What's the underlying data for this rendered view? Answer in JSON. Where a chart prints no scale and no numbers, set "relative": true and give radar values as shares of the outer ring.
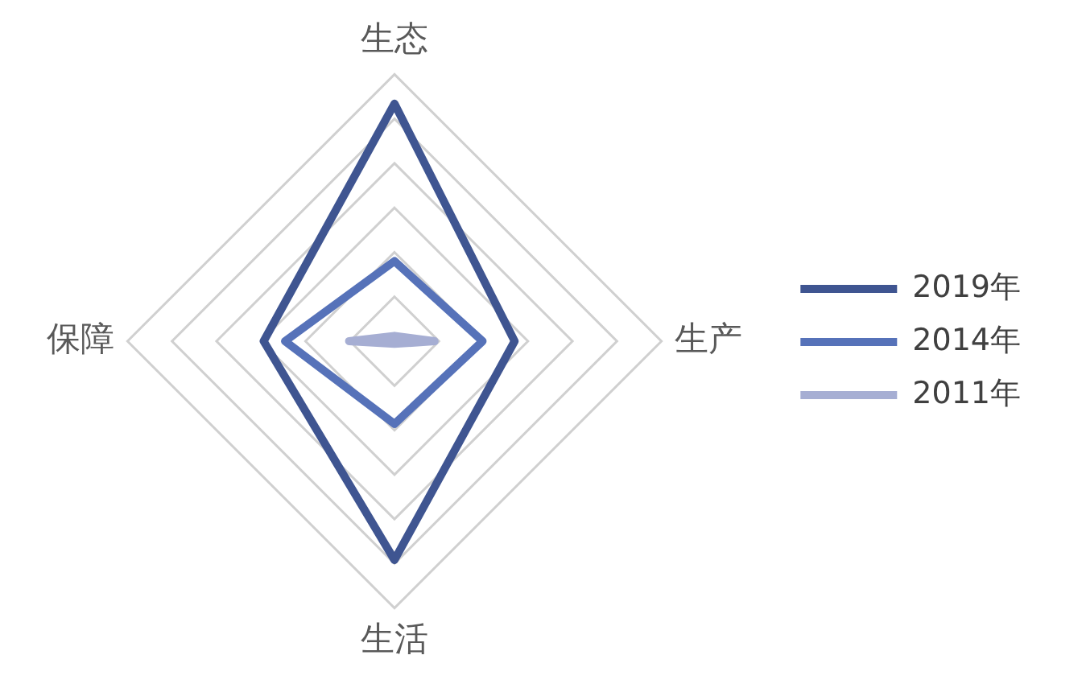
{
  "chart_data": {
    "type": "radar",
    "relative": true,
    "categories": [
      "生态",
      "生产",
      "生活",
      "保障"
    ],
    "legend": "right",
    "grid": true,
    "marker": "none",
    "series": [
      {
        "name": "2019年",
        "color": "#3f5591",
        "values": [
          0.89,
          0.45,
          0.82,
          0.49
        ]
      },
      {
        "name": "2014年",
        "color": "#5672b9",
        "values": [
          0.3,
          0.33,
          0.31,
          0.41
        ]
      },
      {
        "name": "2011年",
        "color": "#a6aed3",
        "values": [
          0.02,
          0.15,
          0.01,
          0.17
        ]
      }
    ]
  }
}
